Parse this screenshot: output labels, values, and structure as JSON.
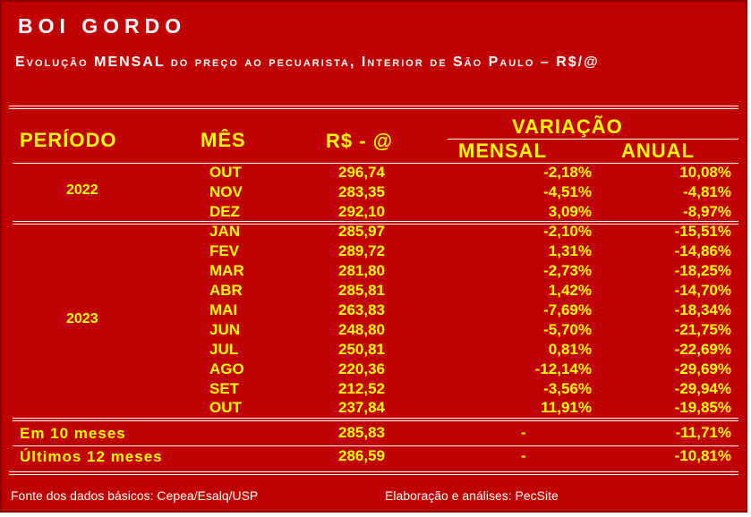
{
  "title": "BOI GORDO",
  "subtitle": "Evolução MENSAL do preço ao pecuarista, Interior de São Paulo – R$/@",
  "headers": {
    "periodo": "PERÍODO",
    "mes": "MÊS",
    "preco": "R$ - @",
    "variacao": "VARIAÇÃO",
    "mensal": "MENSAL",
    "anual": "ANUAL"
  },
  "groups": [
    {
      "year": "2022",
      "rows": [
        {
          "mes": "OUT",
          "preco": "296,74",
          "mensal": "-2,18%",
          "anual": "10,08%"
        },
        {
          "mes": "NOV",
          "preco": "283,35",
          "mensal": "-4,51%",
          "anual": "-4,81%"
        },
        {
          "mes": "DEZ",
          "preco": "292,10",
          "mensal": "3,09%",
          "anual": "-8,97%"
        }
      ]
    },
    {
      "year": "2023",
      "rows": [
        {
          "mes": "JAN",
          "preco": "285,97",
          "mensal": "-2,10%",
          "anual": "-15,51%"
        },
        {
          "mes": "FEV",
          "preco": "289,72",
          "mensal": "1,31%",
          "anual": "-14,86%"
        },
        {
          "mes": "MAR",
          "preco": "281,80",
          "mensal": "-2,73%",
          "anual": "-18,25%"
        },
        {
          "mes": "ABR",
          "preco": "285,81",
          "mensal": "1,42%",
          "anual": "-14,70%"
        },
        {
          "mes": "MAI",
          "preco": "263,83",
          "mensal": "-7,69%",
          "anual": "-18,34%"
        },
        {
          "mes": "JUN",
          "preco": "248,80",
          "mensal": "-5,70%",
          "anual": "-21,75%"
        },
        {
          "mes": "JUL",
          "preco": "250,81",
          "mensal": "0,81%",
          "anual": "-22,69%"
        },
        {
          "mes": "AGO",
          "preco": "220,36",
          "mensal": "-12,14%",
          "anual": "-29,69%"
        },
        {
          "mes": "SET",
          "preco": "212,52",
          "mensal": "-3,56%",
          "anual": "-29,94%"
        },
        {
          "mes": "OUT",
          "preco": "237,84",
          "mensal": "11,91%",
          "anual": "-19,85%"
        }
      ]
    }
  ],
  "summary": [
    {
      "label": "Em 10 meses",
      "preco": "285,83",
      "mensal": "-",
      "anual": "-11,71%"
    },
    {
      "label": "Últimos 12 meses",
      "preco": "286,59",
      "mensal": "-",
      "anual": "-10,81%"
    }
  ],
  "footer": {
    "source": "Fonte dos dados básicos: Cepea/Esalq/USP",
    "credit": "Elaboração e análises: PecSite"
  },
  "colors": {
    "background": "#c00000",
    "text_header": "#ffff00",
    "title": "#ffffff"
  }
}
